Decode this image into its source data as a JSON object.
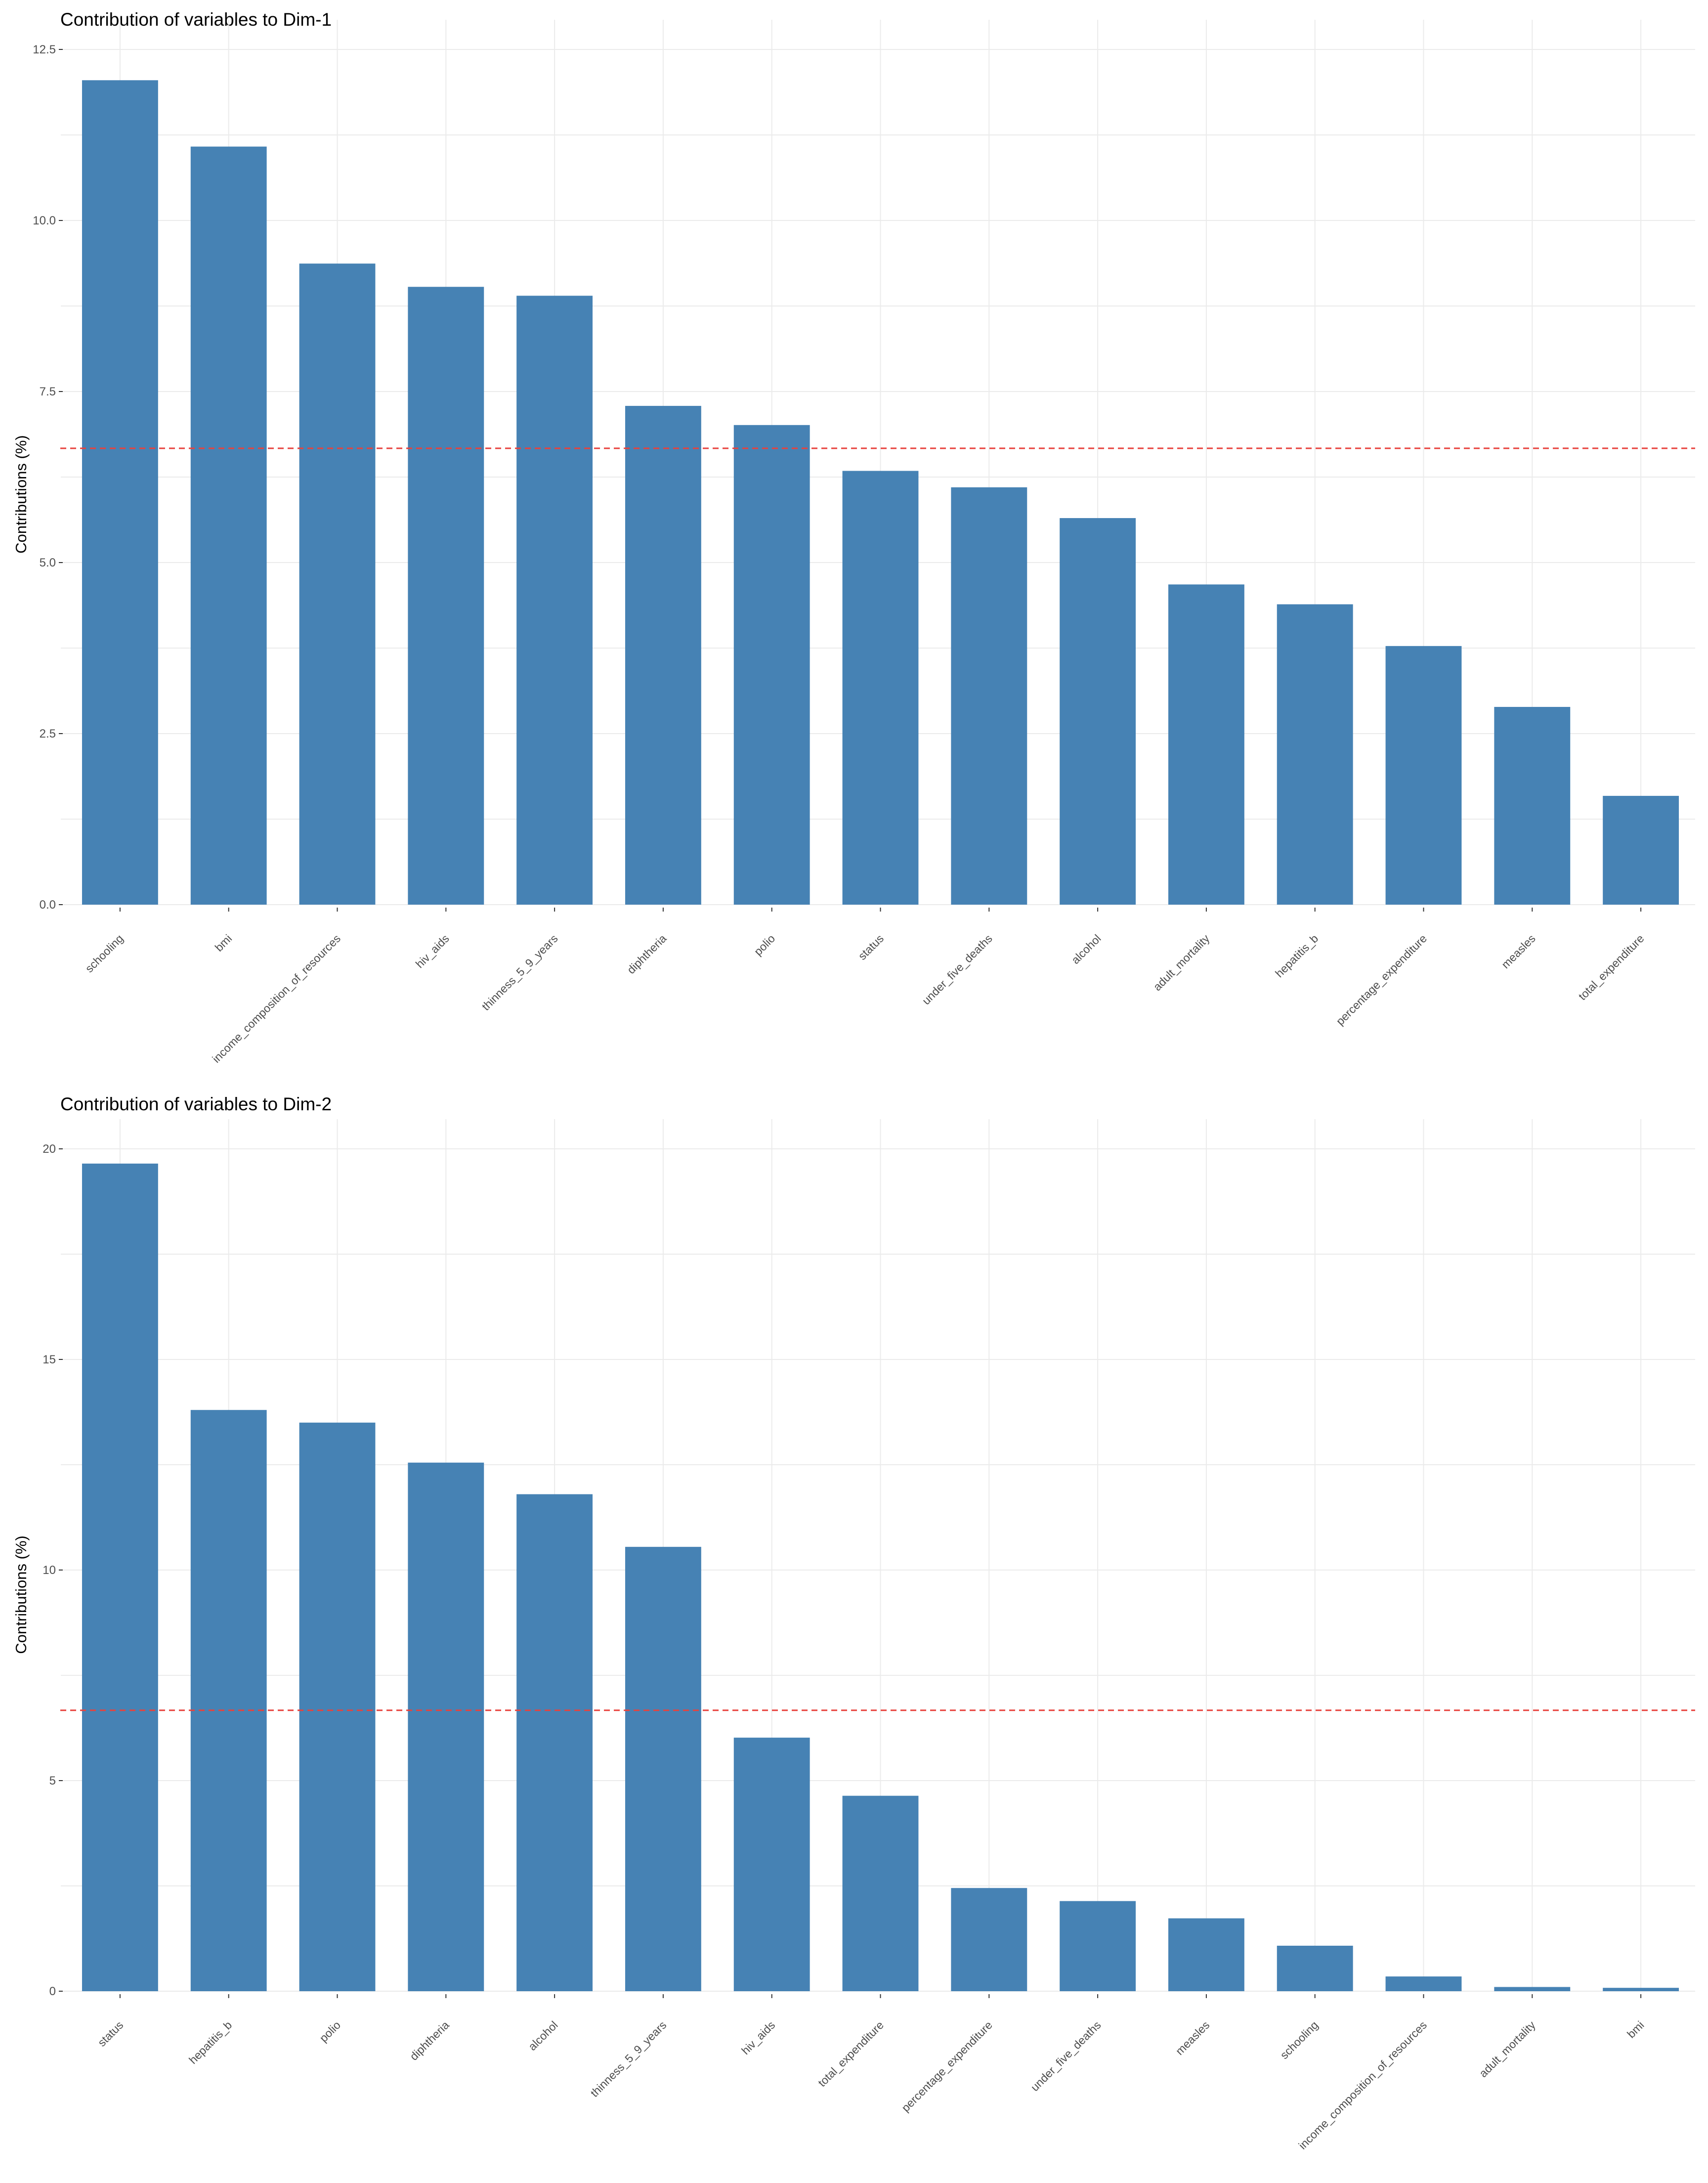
{
  "colors": {
    "bar": "#4682B4",
    "reference_line": "#E8413C",
    "grid": "#EBEBEB",
    "tick_text": "#4D4D4D"
  },
  "chart_data": [
    {
      "type": "bar",
      "title": "Contribution of variables to Dim-1",
      "ylabel": "Contributions (%)",
      "xlabel": "",
      "ylim": [
        0,
        12.5
      ],
      "yticks": [
        "0.0",
        "2.5",
        "5.0",
        "7.5",
        "10.0",
        "12.5"
      ],
      "yticks_values": [
        0,
        2.5,
        5,
        7.5,
        10,
        12.5
      ],
      "reference_line": 6.67,
      "grid": true,
      "categories": [
        "schooling",
        "bmi",
        "income_composition_of_resources",
        "hiv_aids",
        "thinness_5_9_years",
        "diphtheria",
        "polio",
        "status",
        "under_five_deaths",
        "alcohol",
        "adult_mortality",
        "hepatitis_b",
        "percentage_expenditure",
        "measles",
        "total_expenditure"
      ],
      "values": [
        12.05,
        11.08,
        9.37,
        9.03,
        8.9,
        7.29,
        7.01,
        6.34,
        6.1,
        5.65,
        4.68,
        4.39,
        3.78,
        2.89,
        1.59
      ]
    },
    {
      "type": "bar",
      "title": "Contribution of variables to Dim-2",
      "ylabel": "Contributions (%)",
      "xlabel": "",
      "ylim": [
        0,
        20
      ],
      "yticks": [
        "0",
        "5",
        "10",
        "15",
        "20"
      ],
      "yticks_values": [
        0,
        5,
        10,
        15,
        20
      ],
      "reference_line": 6.67,
      "grid": true,
      "categories": [
        "status",
        "hepatitis_b",
        "polio",
        "diphtheria",
        "alcohol",
        "thinness_5_9_years",
        "hiv_aids",
        "total_expenditure",
        "percentage_expenditure",
        "under_five_deaths",
        "measles",
        "schooling",
        "income_composition_of_resources",
        "adult_mortality",
        "bmi"
      ],
      "values": [
        19.65,
        13.8,
        13.5,
        12.55,
        11.8,
        10.55,
        6.02,
        4.64,
        2.45,
        2.14,
        1.73,
        1.08,
        0.35,
        0.1,
        0.08
      ]
    }
  ]
}
